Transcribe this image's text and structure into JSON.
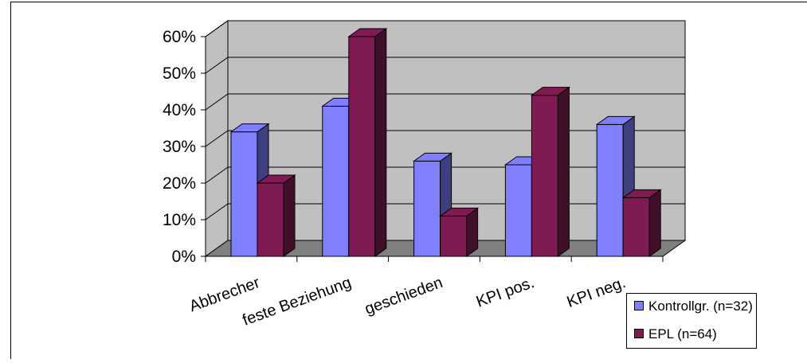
{
  "chart_data": {
    "type": "bar",
    "title": "",
    "xlabel": "",
    "ylabel": "",
    "categories": [
      "Abbrecher",
      "feste Beziehung",
      "geschieden",
      "KPI pos.",
      "KPI neg."
    ],
    "series": [
      {
        "name": "Kontrollgr. (n=32)",
        "values": [
          34,
          41,
          26,
          25,
          36
        ]
      },
      {
        "name": "EPL (n=64)",
        "values": [
          20,
          60,
          11,
          44,
          16
        ]
      }
    ],
    "ylim": [
      0,
      60
    ],
    "yticks": [
      "0%",
      "10%",
      "20%",
      "30%",
      "40%",
      "50%",
      "60%"
    ],
    "grid": true,
    "three_d": true,
    "legend_position": "bottom-right",
    "colors": {
      "series": [
        "#8080ff",
        "#7f1a52"
      ],
      "series_side": [
        "#3f3f7f",
        "#40102a"
      ],
      "wall": "#c0c0c0",
      "floor": "#808080",
      "grid": "#000000"
    }
  }
}
